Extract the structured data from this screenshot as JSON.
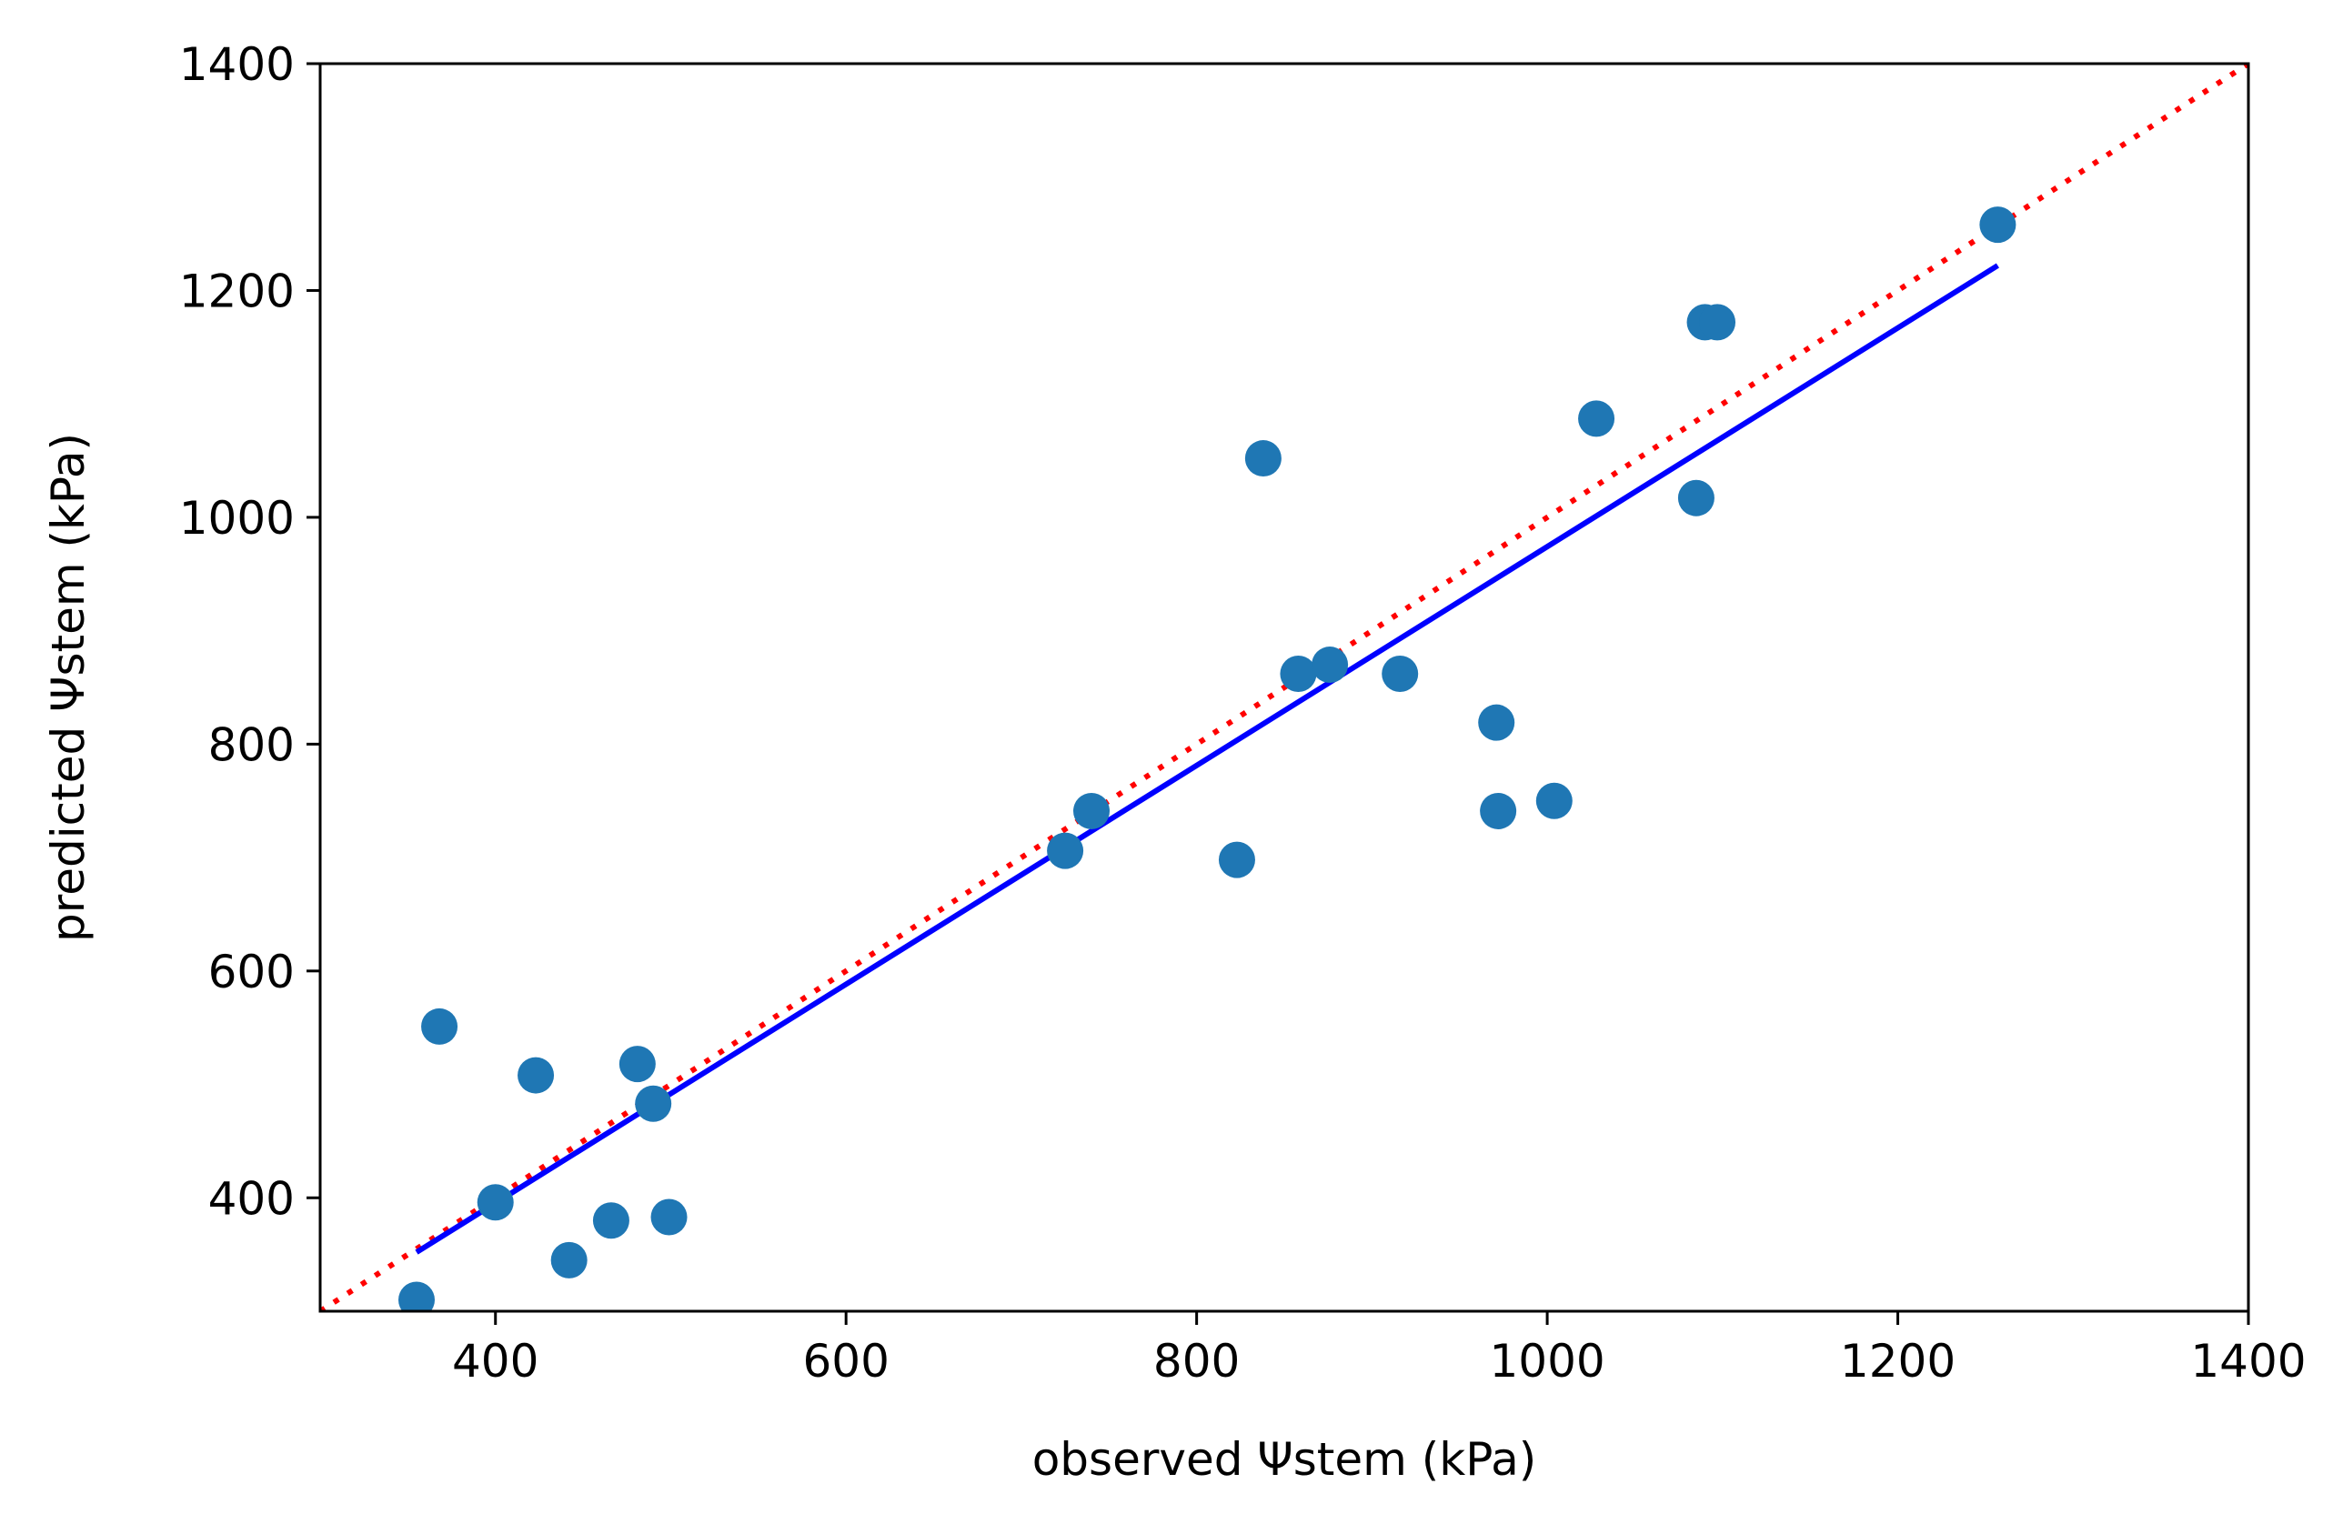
{
  "chart_data": {
    "type": "scatter",
    "title": "",
    "xlabel": "observed Ψstem (kPa)",
    "ylabel": "predicted Ψstem (kPa)",
    "xlim": [
      300,
      1400
    ],
    "ylim": [
      300,
      1400
    ],
    "x_ticks": [
      400,
      600,
      800,
      1000,
      1200,
      1400
    ],
    "y_ticks": [
      400,
      600,
      800,
      1000,
      1200,
      1400
    ],
    "x_tick_labels": [
      "400",
      "600",
      "800",
      "1000",
      "1200",
      "1400"
    ],
    "y_tick_labels": [
      "400",
      "600",
      "800",
      "1000",
      "1200",
      "1400"
    ],
    "grid": false,
    "legend": "none",
    "points": {
      "color": "#1f77b4",
      "x": [
        355,
        368,
        400,
        423,
        442,
        466,
        481,
        490,
        499,
        725,
        740,
        823,
        838,
        858,
        876,
        916,
        971,
        972,
        1004,
        1028,
        1085,
        1090,
        1097,
        1257
      ],
      "y": [
        310,
        551,
        396,
        508,
        345,
        380,
        518,
        483,
        383,
        706,
        741,
        698,
        1052,
        862,
        870,
        862,
        819,
        741,
        750,
        1087,
        1017,
        1172,
        1172,
        1258
      ]
    },
    "fit_line": {
      "color": "#0000ff",
      "style": "solid",
      "x": [
        355,
        1257
      ],
      "y": [
        352,
        1222
      ]
    },
    "identity_line": {
      "color": "#ff0000",
      "style": "dotted",
      "x": [
        300,
        1400
      ],
      "y": [
        300,
        1400
      ]
    }
  }
}
